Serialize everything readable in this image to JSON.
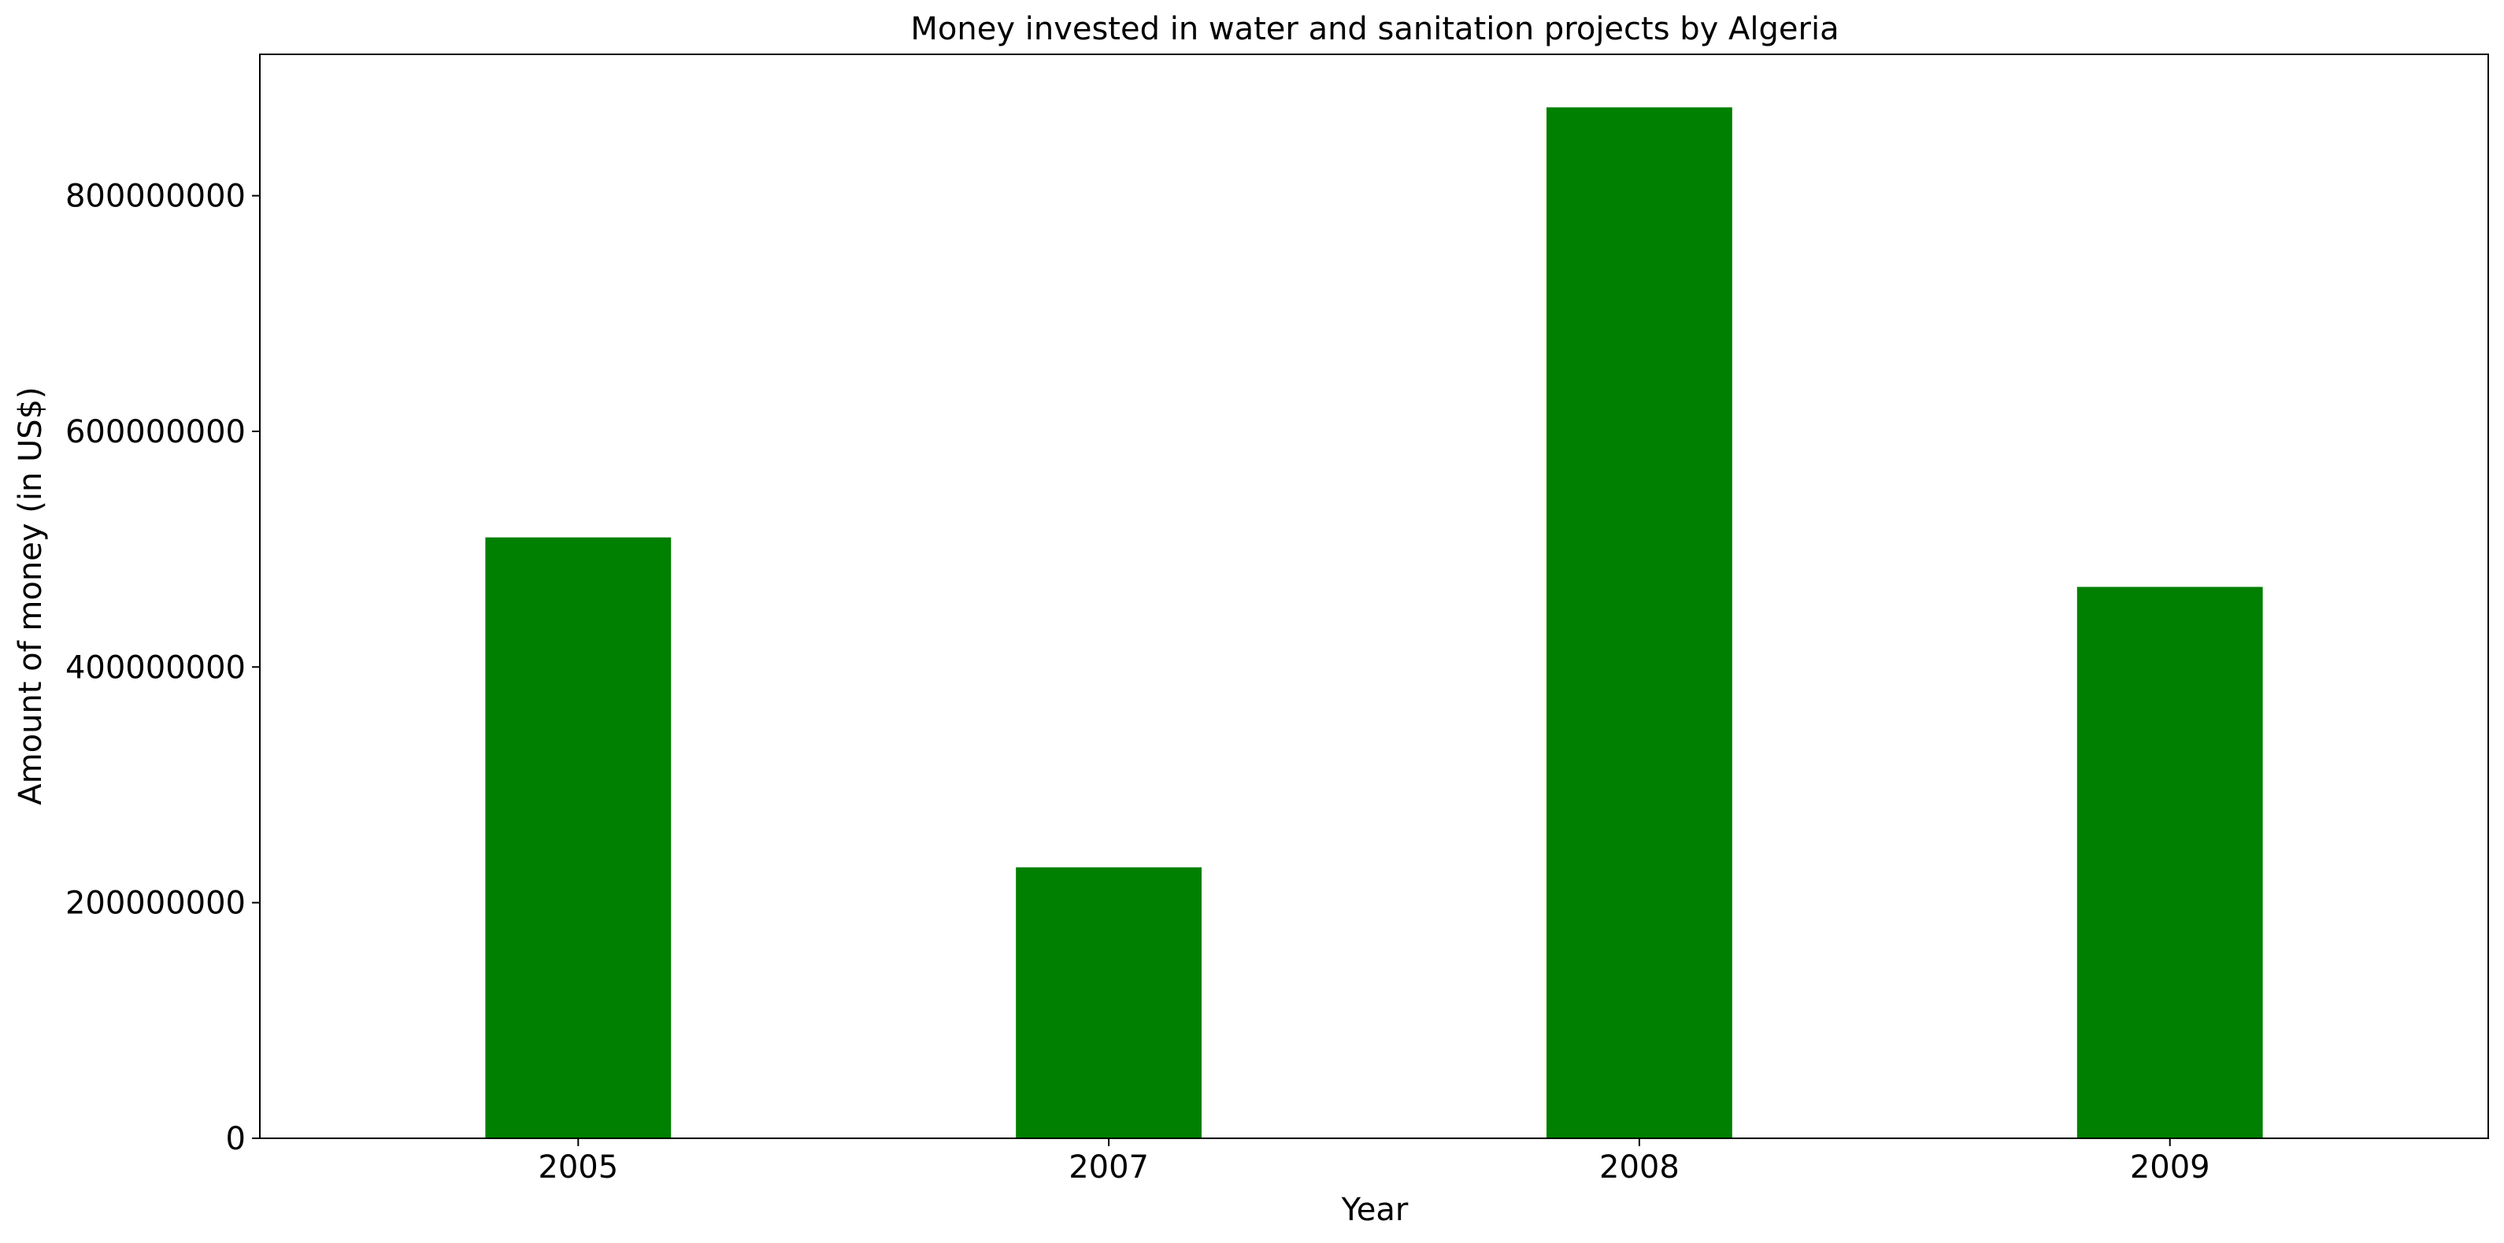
{
  "chart_data": {
    "type": "bar",
    "title": "Money invested in water and sanitation projects by Algeria",
    "xlabel": "Year",
    "ylabel": "Amount of money (in US$)",
    "categories": [
      "2005",
      "2007",
      "2008",
      "2009"
    ],
    "values": [
      510000000,
      230000000,
      875000000,
      468000000
    ],
    "ylim": [
      0,
      920000000
    ],
    "yticks": [
      0,
      200000000,
      400000000,
      600000000,
      800000000
    ],
    "ytick_labels": [
      "0",
      "200000000",
      "400000000",
      "600000000",
      "800000000"
    ],
    "bar_color": "#008000",
    "grid": false,
    "legend": "none"
  }
}
